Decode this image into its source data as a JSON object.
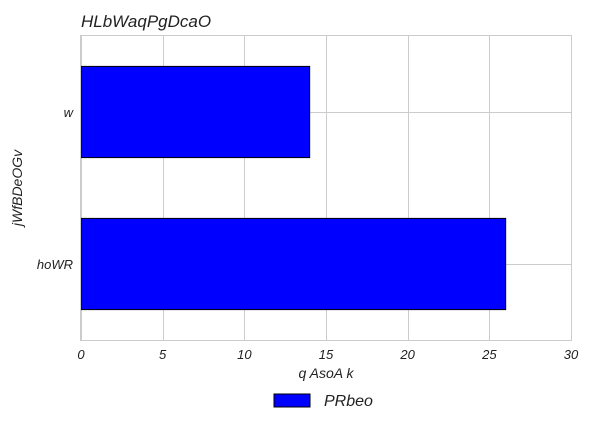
{
  "chart_data": {
    "type": "bar",
    "orientation": "horizontal",
    "title": "HLbWaqPgDcaO",
    "xlabel": "q  AsoA k",
    "ylabel": "jWfBDeOGv",
    "categories": [
      "w",
      "hoWR"
    ],
    "series": [
      {
        "name": "PRbeo",
        "values": [
          14,
          26
        ],
        "color": "#0000ff"
      }
    ],
    "xlim": [
      0,
      30
    ],
    "xticks": [
      0,
      5,
      10,
      15,
      20,
      25,
      30
    ],
    "grid": true,
    "legend_position": "bottom-center"
  }
}
